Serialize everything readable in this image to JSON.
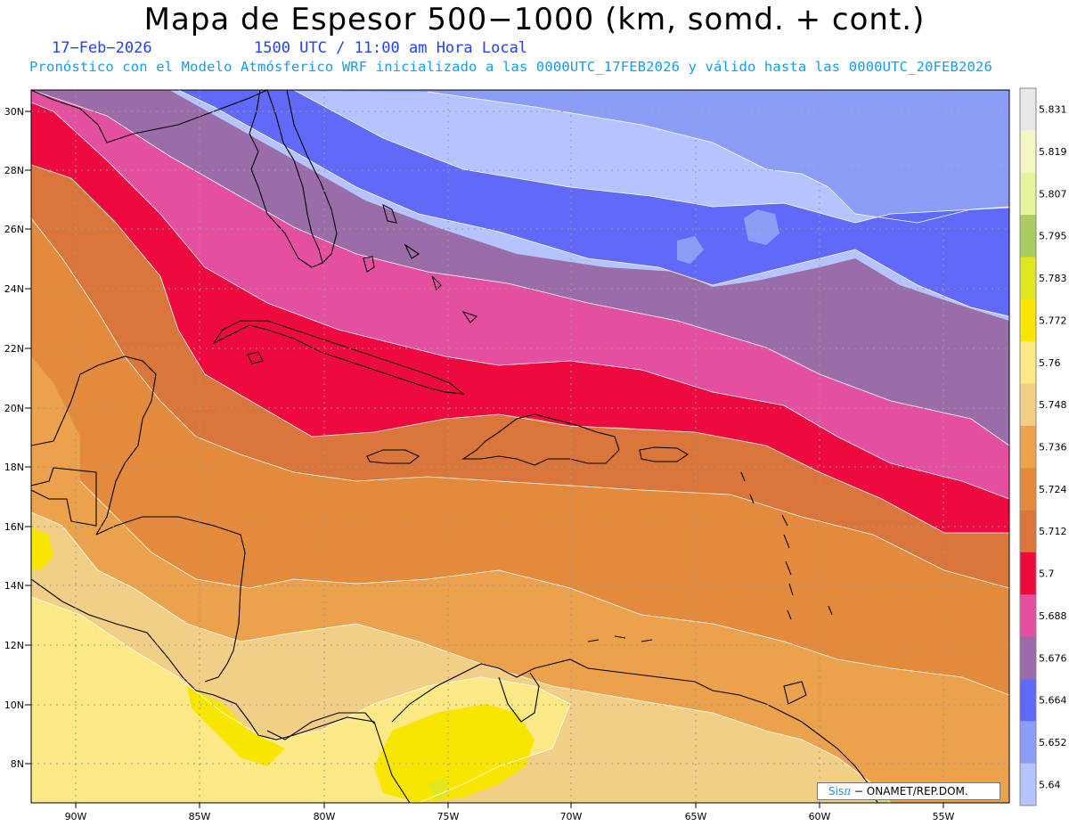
{
  "header": {
    "title": "Mapa de Espesor 500−1000 (km, somd. + cont.)",
    "date": "17−Feb−2026",
    "time": "1500 UTC / 11:00 am Hora Local",
    "subtitle": "Pronóstico con el Modelo Atmósferico WRF inicializado a las 0000UTC_17FEB2026 y válido hasta las  0000UTC_20FEB2026"
  },
  "map": {
    "lat_labels": [
      "30N",
      "28N",
      "26N",
      "24N",
      "22N",
      "20N",
      "18N",
      "16N",
      "14N",
      "12N",
      "10N",
      "8N"
    ],
    "lon_labels": [
      "90W",
      "85W",
      "80W",
      "75W",
      "70W",
      "65W",
      "60W",
      "55W"
    ],
    "grid": true
  },
  "colorbar": {
    "labels": [
      "5.831",
      "5.819",
      "5.807",
      "5.795",
      "5.783",
      "5.772",
      "5.76",
      "5.748",
      "5.736",
      "5.724",
      "5.712",
      "5.7",
      "5.688",
      "5.676",
      "5.664",
      "5.652",
      "5.64"
    ],
    "colors": [
      "#e8e8e8",
      "#f4f7c4",
      "#e6f49e",
      "#aacd63",
      "#dfe81f",
      "#f8e600",
      "#fbe985",
      "#f1cf86",
      "#eca24c",
      "#e48a3d",
      "#da763c",
      "#ee0a3e",
      "#e54fa0",
      "#9a6ca8",
      "#6069f8",
      "#8b9df6",
      "#b5c4fe"
    ]
  },
  "credit": {
    "brand": "Sis",
    "pi": "π",
    "org": "− ONAMET/REP.DOM."
  }
}
